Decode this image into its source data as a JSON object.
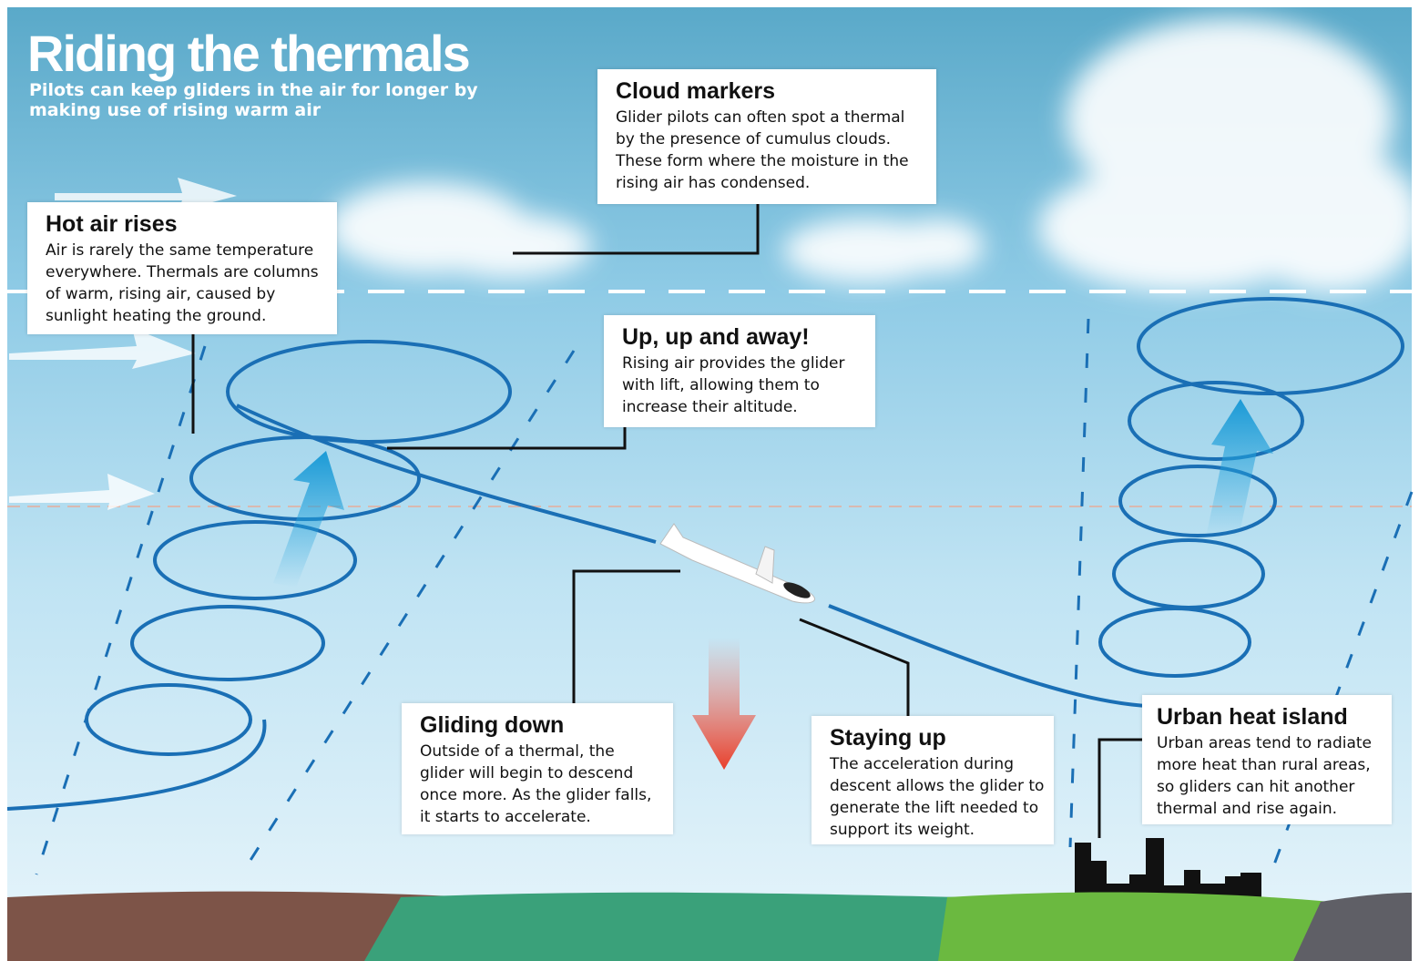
{
  "header": {
    "title": "Riding the thermals",
    "subtitle": "Pilots can keep gliders in the air for longer by making use of rising warm air"
  },
  "callouts": [
    {
      "heading": "Hot air rises",
      "text": "Air is rarely the same temperature everywhere. Thermals are columns of warm, rising air, caused by sunlight heating the ground."
    },
    {
      "heading": "Cloud markers",
      "text": "Glider pilots can often spot a thermal by the presence of cumulus clouds. These form where the moisture in the rising air has condensed."
    },
    {
      "heading": "Up, up and away!",
      "text": "Rising air provides the glider with lift, allowing them to increase their altitude."
    },
    {
      "heading": "Gliding down",
      "text": "Outside of a thermal, the glider will begin to descend once more. As the glider falls, it starts to accelerate."
    },
    {
      "heading": "Staying up",
      "text": "The acceleration during descent allows the glider to generate the lift needed to support its weight."
    },
    {
      "heading": "Urban heat island",
      "text": "Urban areas tend to radiate more heat than rural areas, so gliders can hit another thermal and rise again."
    }
  ]
}
